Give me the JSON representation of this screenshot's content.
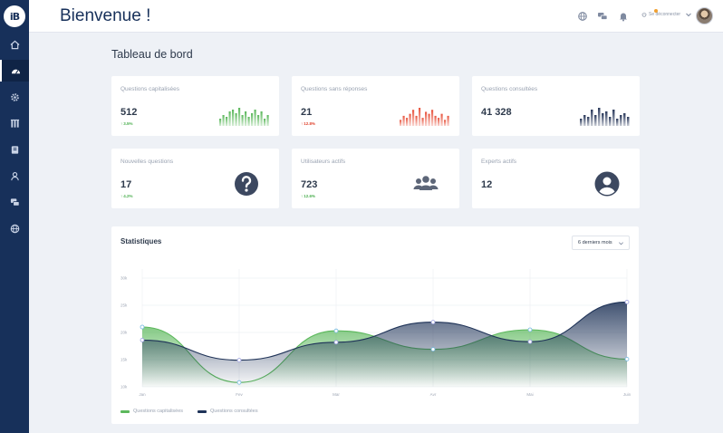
{
  "app": {
    "logo_text": "iB"
  },
  "sidebar": {
    "items": [
      {
        "name": "home-icon"
      },
      {
        "name": "dashboard-icon"
      },
      {
        "name": "gear-icon"
      },
      {
        "name": "book-icon"
      },
      {
        "name": "library-icon"
      },
      {
        "name": "user-icon"
      },
      {
        "name": "chat-icon"
      },
      {
        "name": "globe-icon"
      }
    ]
  },
  "header": {
    "title": "Bienvenue !",
    "logout_label": "Se déconnecter"
  },
  "main": {
    "section_title": "Tableau de bord",
    "cards": [
      {
        "label": "Questions capitalisées",
        "value": "512",
        "delta": "3.5%",
        "trend": "up"
      },
      {
        "label": "Questions sans réponses",
        "value": "21",
        "delta": "12.8%",
        "trend": "down"
      },
      {
        "label": "Questions consultées",
        "value": "41 328"
      },
      {
        "label": "Nouvelles questions",
        "value": "17",
        "delta": "4.2%",
        "trend": "up"
      },
      {
        "label": "Utilisateurs actifs",
        "value": "723",
        "delta": "12.6%",
        "trend": "up"
      },
      {
        "label": "Experts actifs",
        "value": "12"
      }
    ],
    "sparklines": {
      "green": [
        4,
        6,
        5,
        8,
        9,
        7,
        10,
        6,
        8,
        5,
        7,
        9,
        6,
        8,
        4,
        6
      ],
      "red": [
        3,
        5,
        4,
        6,
        8,
        5,
        9,
        4,
        7,
        6,
        8,
        5,
        4,
        6,
        3,
        5
      ],
      "navy": [
        4,
        6,
        5,
        9,
        6,
        10,
        7,
        8,
        5,
        9,
        4,
        6,
        7,
        5
      ]
    },
    "colors": {
      "green": "#5cb85c",
      "red": "#e8553f",
      "navy": "#2b3a5c"
    }
  },
  "stats": {
    "title": "Statistiques",
    "period": "6 derniers mois",
    "chart_data": {
      "type": "area",
      "categories": [
        "Jan",
        "Fev",
        "Mar",
        "Avr",
        "Mai",
        "Juin"
      ],
      "y_ticks": [
        "10k",
        "15k",
        "20k",
        "25k",
        "30k"
      ],
      "ylim": [
        10,
        30
      ],
      "series": [
        {
          "name": "Questions capitalisées",
          "color": "#5cb85c",
          "values": [
            21.0,
            10.8,
            20.3,
            16.9,
            20.5,
            15.1
          ]
        },
        {
          "name": "Questions consultées",
          "color": "#1f3358",
          "values": [
            18.6,
            14.9,
            18.2,
            21.9,
            18.3,
            25.6
          ]
        }
      ],
      "grid": true,
      "legend_position": "bottom-left"
    }
  }
}
